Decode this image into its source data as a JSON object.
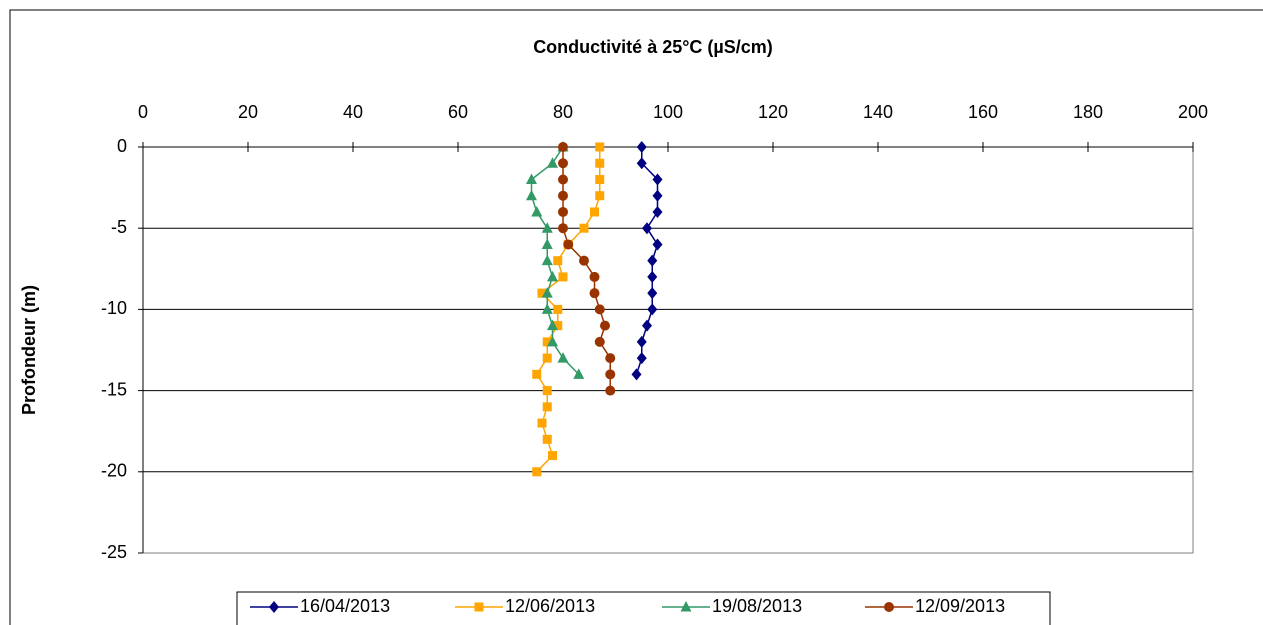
{
  "chart_data": {
    "type": "line",
    "title": "Conductivité à 25°C (µS/cm)",
    "ylabel": "Profondeur (m)",
    "xlim": [
      0,
      200
    ],
    "xticks": [
      0,
      20,
      40,
      60,
      80,
      100,
      120,
      140,
      160,
      180,
      200
    ],
    "ylim": [
      -25,
      0
    ],
    "yticks": [
      0,
      -5,
      -10,
      -15,
      -20,
      -25
    ],
    "grid": true,
    "legend": "bottom",
    "series": [
      {
        "name": "16/04/2013",
        "color": "#000080",
        "marker": "diamond",
        "x": [
          95,
          95,
          98,
          98,
          98,
          96,
          98,
          97,
          97,
          97,
          97,
          96,
          95,
          95,
          94
        ],
        "y": [
          0,
          -1,
          -2,
          -3,
          -4,
          -5,
          -6,
          -7,
          -8,
          -9,
          -10,
          -11,
          -12,
          -13,
          -14
        ]
      },
      {
        "name": "12/06/2013",
        "color": "#ffa500",
        "marker": "square",
        "x": [
          87,
          87,
          87,
          87,
          86,
          84,
          81,
          79,
          80,
          76,
          79,
          79,
          77,
          77,
          75,
          77,
          77,
          76,
          77,
          78,
          75
        ],
        "y": [
          0,
          -1,
          -2,
          -3,
          -4,
          -5,
          -6,
          -7,
          -8,
          -9,
          -10,
          -11,
          -12,
          -13,
          -14,
          -15,
          -16,
          -17,
          -18,
          -19,
          -20
        ]
      },
      {
        "name": "19/08/2013",
        "color": "#339966",
        "marker": "triangle",
        "x": [
          80,
          78,
          74,
          74,
          75,
          77,
          77,
          77,
          78,
          77,
          77,
          78,
          78,
          80,
          83
        ],
        "y": [
          0,
          -1,
          -2,
          -3,
          -4,
          -5,
          -6,
          -7,
          -8,
          -9,
          -10,
          -11,
          -12,
          -13,
          -14
        ]
      },
      {
        "name": "12/09/2013",
        "color": "#993300",
        "marker": "circle",
        "x": [
          80,
          80,
          80,
          80,
          80,
          80,
          81,
          84,
          86,
          86,
          87,
          88,
          87,
          89,
          89,
          89
        ],
        "y": [
          0,
          -1,
          -2,
          -3,
          -4,
          -5,
          -6,
          -7,
          -8,
          -9,
          -10,
          -11,
          -12,
          -13,
          -14,
          -15
        ]
      }
    ]
  }
}
